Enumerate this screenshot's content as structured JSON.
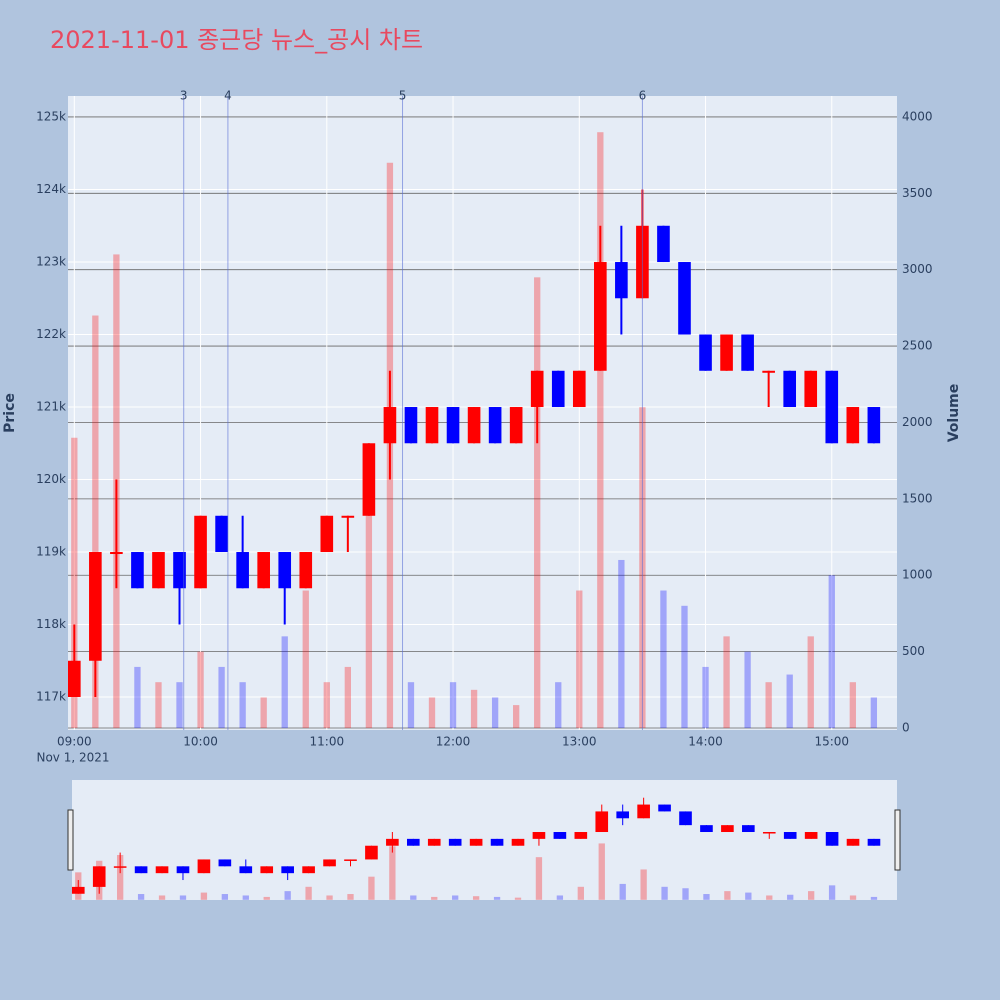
{
  "chart_data": {
    "type": "candlestick",
    "title": "2021-11-01 종근당 뉴스_공시 차트",
    "y_label": "Price",
    "y2_label": "Volume",
    "x_date_label": "Nov 1, 2021",
    "up_color": "#ff0000",
    "down_color": "#0000ff",
    "x": [
      "2021-11-01 09:00",
      "2021-11-01 09:10",
      "2021-11-01 09:20",
      "2021-11-01 09:30",
      "2021-11-01 09:40",
      "2021-11-01 09:50",
      "2021-11-01 10:00",
      "2021-11-01 10:10",
      "2021-11-01 10:20",
      "2021-11-01 10:30",
      "2021-11-01 10:40",
      "2021-11-01 10:50",
      "2021-11-01 11:00",
      "2021-11-01 11:10",
      "2021-11-01 11:20",
      "2021-11-01 11:30",
      "2021-11-01 11:40",
      "2021-11-01 11:50",
      "2021-11-01 12:00",
      "2021-11-01 12:10",
      "2021-11-01 12:20",
      "2021-11-01 12:30",
      "2021-11-01 12:40",
      "2021-11-01 12:50",
      "2021-11-01 13:00",
      "2021-11-01 13:10",
      "2021-11-01 13:20",
      "2021-11-01 13:30",
      "2021-11-01 13:40",
      "2021-11-01 13:50",
      "2021-11-01 14:00",
      "2021-11-01 14:10",
      "2021-11-01 14:20",
      "2021-11-01 14:30",
      "2021-11-01 14:40",
      "2021-11-01 14:50",
      "2021-11-01 15:00",
      "2021-11-01 15:10",
      "2021-11-01 15:20"
    ],
    "open": [
      117000,
      117500,
      119000,
      119000,
      118500,
      119000,
      118500,
      119500,
      119000,
      118500,
      119000,
      118500,
      119000,
      119500,
      119500,
      120500,
      121000,
      120500,
      121000,
      120500,
      121000,
      120500,
      121000,
      121500,
      121000,
      121500,
      123000,
      122500,
      123500,
      123000,
      122000,
      121500,
      122000,
      121500,
      121500,
      121000,
      121500,
      120500,
      121000
    ],
    "high": [
      118000,
      119000,
      120000,
      119000,
      119000,
      119000,
      119500,
      119500,
      119500,
      119000,
      119000,
      119000,
      119500,
      119500,
      120500,
      121500,
      121000,
      121000,
      121000,
      121000,
      121000,
      121000,
      121500,
      121500,
      121500,
      123500,
      123500,
      124000,
      123500,
      123000,
      122000,
      122000,
      122000,
      121500,
      121500,
      121500,
      121500,
      121000,
      121000
    ],
    "low": [
      117000,
      117000,
      118500,
      118500,
      118500,
      118000,
      118500,
      119000,
      118500,
      118500,
      118000,
      118500,
      119000,
      119000,
      119500,
      120000,
      120500,
      120500,
      120500,
      120500,
      120500,
      120500,
      120500,
      121000,
      121000,
      121500,
      122000,
      122500,
      123000,
      122000,
      121500,
      121500,
      121500,
      121000,
      121000,
      121000,
      120500,
      120500,
      120500
    ],
    "close": [
      117500,
      119000,
      119000,
      118500,
      119000,
      118500,
      119500,
      119000,
      118500,
      119000,
      118500,
      119000,
      119500,
      119500,
      120500,
      121000,
      120500,
      121000,
      120500,
      121000,
      120500,
      121000,
      121500,
      121000,
      121500,
      123000,
      122500,
      123500,
      123000,
      122000,
      121500,
      122000,
      121500,
      121500,
      121000,
      121500,
      120500,
      121000,
      120500
    ],
    "volume": [
      1900,
      2700,
      3100,
      400,
      300,
      300,
      500,
      400,
      300,
      200,
      600,
      900,
      300,
      400,
      1600,
      3700,
      300,
      200,
      300,
      250,
      200,
      150,
      2950,
      300,
      900,
      3900,
      1100,
      2100,
      900,
      800,
      400,
      600,
      500,
      300,
      350,
      600,
      1000,
      300,
      200
    ],
    "news": [
      {
        "x": "2021-11-01 09:52",
        "label": "3"
      },
      {
        "x": "2021-11-01 10:13",
        "label": "4"
      },
      {
        "x": "2021-11-01 11:36",
        "label": "5"
      },
      {
        "x": "2021-11-01 13:30",
        "label": "6"
      }
    ],
    "xlim": [
      "2021-11-01 08:57",
      "2021-11-01 15:31"
    ],
    "xticks": [
      {
        "value": "2021-11-01 09:00",
        "label": "09:00"
      },
      {
        "value": "2021-11-01 10:00",
        "label": "10:00"
      },
      {
        "value": "2021-11-01 11:00",
        "label": "11:00"
      },
      {
        "value": "2021-11-01 12:00",
        "label": "12:00"
      },
      {
        "value": "2021-11-01 13:00",
        "label": "13:00"
      },
      {
        "value": "2021-11-01 14:00",
        "label": "14:00"
      },
      {
        "value": "2021-11-01 15:00",
        "label": "15:00"
      }
    ],
    "ylim": [
      116545,
      125290
    ],
    "yticks": [
      {
        "value": 117000,
        "label": "117k"
      },
      {
        "value": 118000,
        "label": "118k"
      },
      {
        "value": 119000,
        "label": "119k"
      },
      {
        "value": 120000,
        "label": "120k"
      },
      {
        "value": 121000,
        "label": "121k"
      },
      {
        "value": 122000,
        "label": "122k"
      },
      {
        "value": 123000,
        "label": "123k"
      },
      {
        "value": 124000,
        "label": "124k"
      },
      {
        "value": 125000,
        "label": "125k"
      }
    ],
    "y2lim": [
      -13,
      4137
    ],
    "y2ticks": [
      0,
      500,
      1000,
      1500,
      2000,
      2500,
      3000,
      3500,
      4000
    ],
    "grid": true,
    "rangeslider": true
  }
}
